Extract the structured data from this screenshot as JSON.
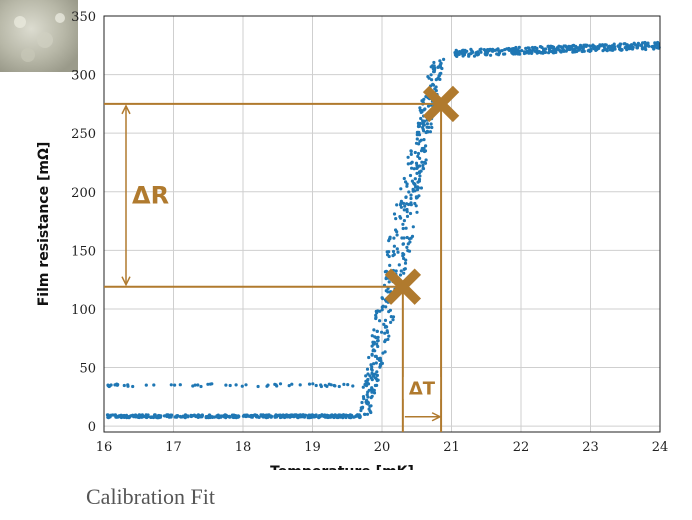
{
  "caption": "Calibration Fit",
  "colors": {
    "points": "#1f77b4",
    "annotation": "#b07a2e",
    "grid": "#cfcfcf"
  },
  "chart_data": {
    "type": "scatter",
    "title": "",
    "xlabel": "Temperature [mK]",
    "ylabel": "Film resistance [mΩ]",
    "xlim": [
      16,
      24
    ],
    "ylim": [
      -5,
      350
    ],
    "xticks": [
      16,
      17,
      18,
      19,
      20,
      21,
      22,
      23,
      24
    ],
    "yticks": [
      0,
      50,
      100,
      150,
      200,
      250,
      300,
      350
    ],
    "grid": true,
    "series": [
      {
        "points_description_segments": [
          {
            "x_from": 16.0,
            "x_to": 19.7,
            "y": 9
          },
          {
            "x_from": 16.0,
            "x_to": 19.7,
            "y": 36,
            "sparse": true
          },
          {
            "x_from": 19.7,
            "x_to": 20.9,
            "y_from": 9,
            "y_to": 313,
            "transition": true
          },
          {
            "x_from": 21.0,
            "x_to": 24.0,
            "y_from": 318,
            "y_to": 328
          }
        ]
      }
    ],
    "annotations": {
      "markers": [
        {
          "x": 20.3,
          "y": 119
        },
        {
          "x": 20.85,
          "y": 275
        }
      ],
      "delta_r_label": "ΔR",
      "delta_t_label": "ΔT"
    }
  }
}
